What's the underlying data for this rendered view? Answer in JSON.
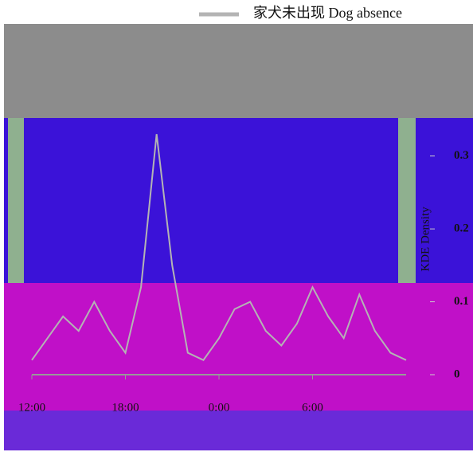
{
  "chart_data": {
    "type": "line",
    "legend_title": "家犬未出现 Dog absence",
    "ylabel": "KDE Density",
    "x": [
      12,
      13,
      14,
      15,
      16,
      17,
      18,
      19,
      20,
      21,
      22,
      23,
      24,
      25,
      26,
      27,
      28,
      29,
      30,
      31,
      32,
      33,
      34,
      35,
      36
    ],
    "series": [
      {
        "name": "家犬未出现 Dog absence",
        "color": "#b4b4b4",
        "values": [
          0.02,
          0.05,
          0.08,
          0.06,
          0.1,
          0.06,
          0.03,
          0.12,
          0.33,
          0.15,
          0.03,
          0.02,
          0.05,
          0.09,
          0.1,
          0.06,
          0.04,
          0.07,
          0.12,
          0.08,
          0.05,
          0.11,
          0.06,
          0.03,
          0.02
        ]
      }
    ],
    "xlim": [
      12,
      36
    ],
    "xticks": [
      {
        "value": 12,
        "label": "12:00"
      },
      {
        "value": 18,
        "label": "18:00"
      },
      {
        "value": 24,
        "label": "0:00"
      },
      {
        "value": 30,
        "label": "6:00"
      }
    ],
    "ylim": [
      0,
      0.35
    ],
    "yticks": [
      0,
      0.1,
      0.2,
      0.3
    ],
    "legend": "top"
  }
}
